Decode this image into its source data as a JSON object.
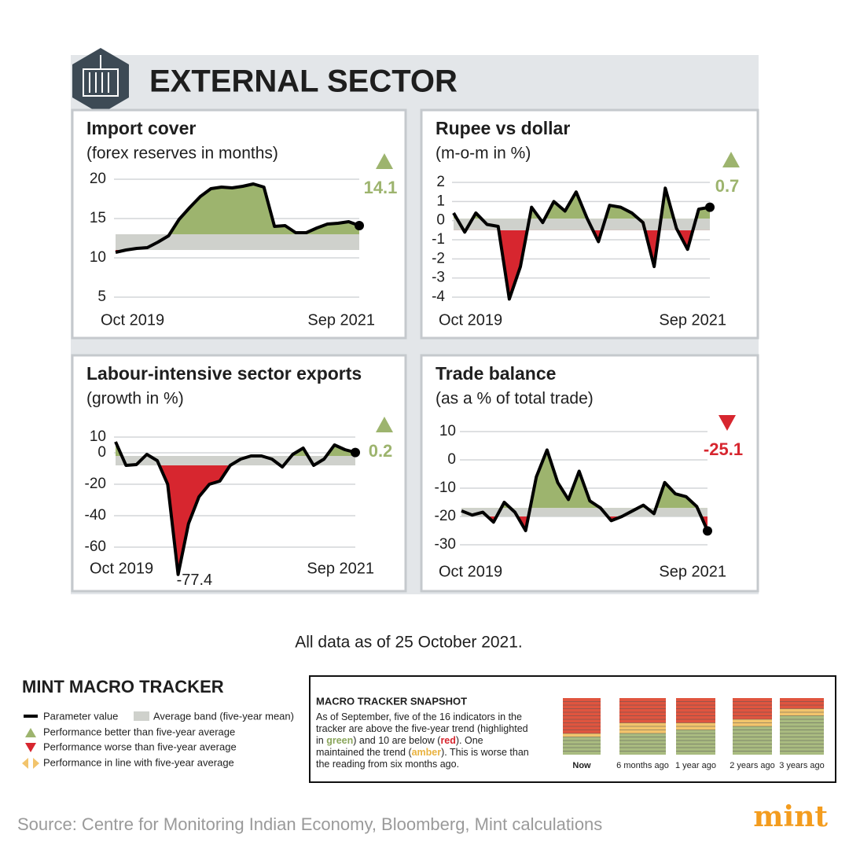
{
  "header": {
    "title": "EXTERNAL SECTOR"
  },
  "colors": {
    "better": "#9db46e",
    "worse": "#d7262f",
    "band": "#cfd1cc",
    "grid": "#d3d5d8",
    "line": "#000000"
  },
  "chart_data": [
    {
      "type": "line",
      "title": "Import cover",
      "subtitle": "(forex reserves in months)",
      "categories": [
        "Oct 2019",
        null,
        null,
        null,
        null,
        null,
        null,
        null,
        null,
        null,
        null,
        null,
        null,
        null,
        null,
        null,
        null,
        null,
        null,
        null,
        null,
        null,
        null,
        "Sep 2021"
      ],
      "values": [
        10.7,
        11.0,
        11.2,
        11.3,
        12.0,
        12.8,
        14.9,
        16.4,
        17.8,
        18.8,
        19.0,
        18.9,
        19.1,
        19.4,
        19.0,
        14.0,
        14.1,
        13.2,
        13.2,
        13.8,
        14.3,
        14.4,
        14.6,
        14.1
      ],
      "band": [
        11,
        13
      ],
      "ylim": [
        5,
        20
      ],
      "yticks": [
        5,
        10,
        15,
        20
      ],
      "grid": true,
      "trend": "up",
      "label_last": true
    },
    {
      "type": "line",
      "title": "Rupee vs dollar",
      "subtitle": "(m-o-m in %)",
      "categories": [
        "Oct 2019",
        null,
        null,
        null,
        null,
        null,
        null,
        null,
        null,
        null,
        null,
        null,
        null,
        null,
        null,
        null,
        null,
        null,
        null,
        null,
        null,
        null,
        null,
        "Sep 2021"
      ],
      "values": [
        0.4,
        -0.6,
        0.4,
        -0.2,
        -0.3,
        -4.1,
        -2.4,
        0.7,
        -0.1,
        1.0,
        0.5,
        1.5,
        0.1,
        -1.1,
        0.8,
        0.7,
        0.4,
        -0.1,
        -2.4,
        1.7,
        -0.4,
        -1.5,
        0.6,
        0.7
      ],
      "band": [
        -0.5,
        0.1
      ],
      "ylim": [
        -4,
        2
      ],
      "yticks": [
        -4,
        -3,
        -2,
        -1,
        0,
        1,
        2
      ],
      "grid": true,
      "trend": "up",
      "label_last": true
    },
    {
      "type": "line",
      "title": "Labour-intensive sector exports",
      "subtitle": "(growth in %)",
      "categories": [
        "Oct 2019",
        null,
        null,
        null,
        null,
        null,
        null,
        null,
        null,
        null,
        null,
        null,
        null,
        null,
        null,
        null,
        null,
        null,
        null,
        null,
        null,
        null,
        null,
        "Sep 2021"
      ],
      "values": [
        7,
        -8,
        -7.5,
        -1,
        -5,
        -20,
        -77.4,
        -45,
        -28,
        -20,
        -18,
        -8,
        -4,
        -2,
        -2,
        -4,
        -9,
        -1,
        3,
        -8,
        -4,
        5,
        2,
        0.2
      ],
      "band": [
        -8,
        -2
      ],
      "ylim": [
        -60,
        10
      ],
      "yticks": [
        -60,
        -40,
        -20,
        0,
        10
      ],
      "grid": true,
      "trend": "up",
      "label_last": true,
      "label_min": true
    },
    {
      "type": "line",
      "title": "Trade balance",
      "subtitle": "(as a % of total trade)",
      "categories": [
        "Oct 2019",
        null,
        null,
        null,
        null,
        null,
        null,
        null,
        null,
        null,
        null,
        null,
        null,
        null,
        null,
        null,
        null,
        null,
        null,
        null,
        null,
        null,
        null,
        "Sep 2021"
      ],
      "values": [
        -18,
        -19.5,
        -18.5,
        -22,
        -15,
        -18.5,
        -25,
        -6,
        3.5,
        -8,
        -14,
        -4,
        -14.5,
        -17,
        -21.5,
        -20,
        -18,
        -16,
        -19,
        -8,
        -12,
        -13,
        -16.5,
        -25.1
      ],
      "band": [
        -20,
        -17
      ],
      "ylim": [
        -30,
        10
      ],
      "yticks": [
        -30,
        -20,
        -10,
        0,
        10
      ],
      "grid": true,
      "trend": "down",
      "label_last": true
    }
  ],
  "note": "All data as of 25 October 2021.",
  "legend": {
    "title": "MINT MACRO TRACKER",
    "items": [
      "Parameter value",
      "Average band (five-year mean)",
      "Performance better than five-year average",
      "Performance worse than five-year average",
      "Performance in line with five-year average"
    ]
  },
  "snapshot": {
    "title": "MACRO TRACKER SNAPSHOT",
    "lines": [
      [
        "As of September, five of the 16 indicators in the"
      ],
      [
        "tracker are above the five-year trend (highlighted"
      ],
      [
        "in ",
        "green",
        ") and 10 are below (",
        "red",
        "). One"
      ],
      [
        "maintained the trend (",
        "amber",
        "). This is worse than"
      ],
      [
        "the reading from six months ago."
      ]
    ],
    "columns": [
      {
        "label": "Now",
        "red": 10,
        "amber": 1,
        "green": 5
      },
      {
        "label": "6 months ago",
        "red": 7,
        "amber": 3,
        "green": 6
      },
      {
        "label": "1 year ago",
        "red": 7,
        "amber": 2,
        "green": 7
      },
      {
        "label": "2 years ago",
        "red": 6,
        "amber": 2,
        "green": 8
      },
      {
        "label": "3 years ago",
        "red": 3,
        "amber": 2,
        "green": 11
      }
    ],
    "colors": {
      "red": "#e0553f",
      "amber": "#f2c46c",
      "green": "#a9bb80"
    }
  },
  "source": "Source: Centre for Monitoring Indian Economy, Bloomberg, Mint calculations",
  "logo": "mint"
}
